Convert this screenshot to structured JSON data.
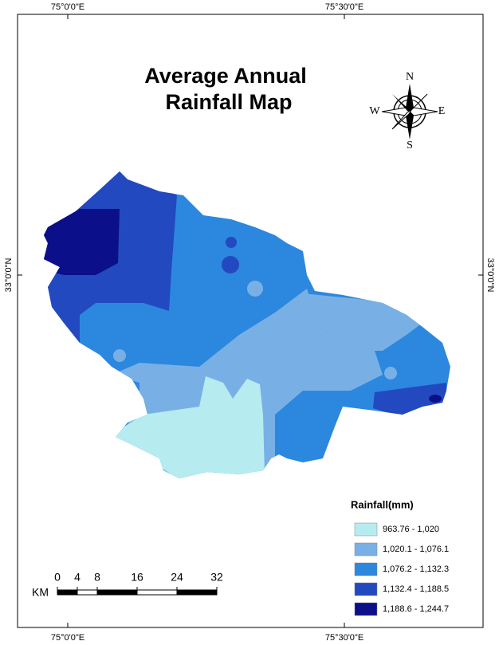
{
  "map": {
    "title": [
      "Average Annual",
      "Rainfall Map"
    ],
    "coordinates": {
      "top_left": "75°0'0\"E",
      "top_right": "75°30'0\"E",
      "bottom_left": "75°0'0\"E",
      "bottom_right": "75°30'0\"E",
      "left": "33°0'0\"N",
      "right": "33°0'0\"N"
    },
    "compass": {
      "north": "N",
      "east": "E",
      "south": "S",
      "west": "W"
    },
    "legend": {
      "title": "Rainfall(mm)",
      "items": [
        {
          "label": "963.76 - 1,020",
          "color": "#b6ecf0"
        },
        {
          "label": "1,020.1 - 1,076.1",
          "color": "#78b0e6"
        },
        {
          "label": "1,076.2 - 1,132.3",
          "color": "#2c87de"
        },
        {
          "label": "1,132.4 - 1,188.5",
          "color": "#2349c0"
        },
        {
          "label": "1,188.6 - 1,244.7",
          "color": "#0b0f8a"
        }
      ]
    },
    "scale_bar": {
      "unit": "KM",
      "ticks": [
        0,
        4,
        8,
        16,
        24,
        32
      ]
    }
  }
}
